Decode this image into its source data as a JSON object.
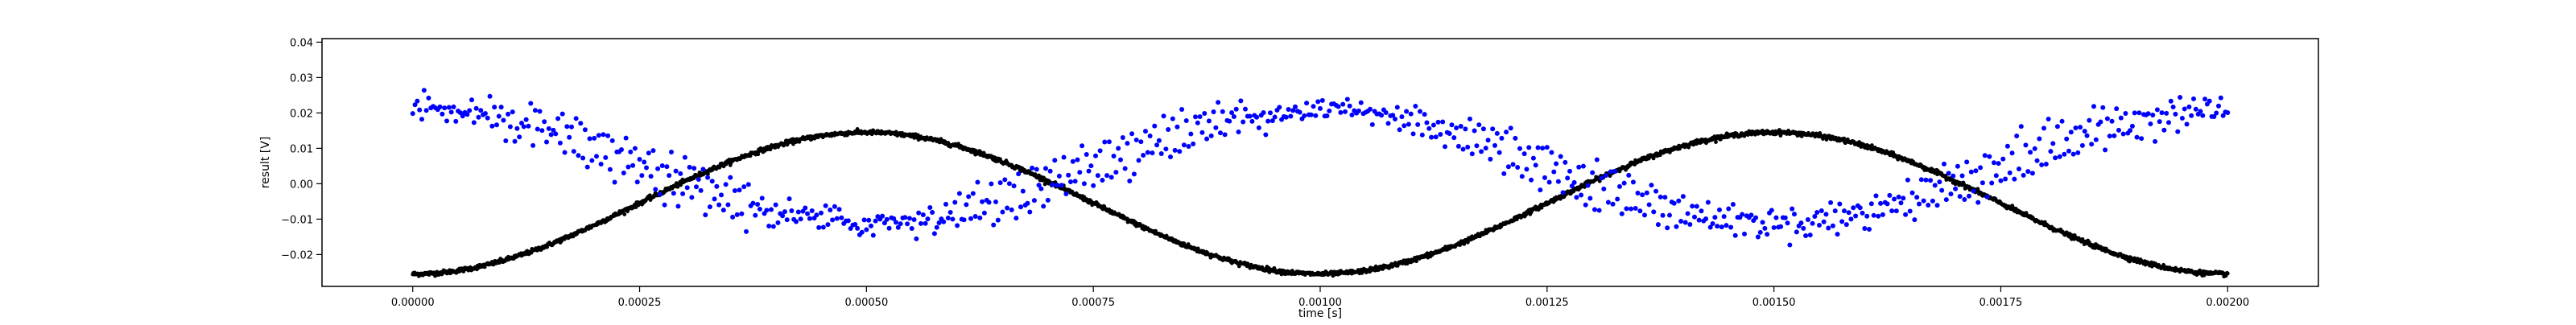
{
  "chart_data": {
    "type": "scatter",
    "title": "",
    "xlabel": "time [s]",
    "ylabel": "result [V]",
    "xlim": [
      -0.0001,
      0.0021
    ],
    "ylim": [
      -0.029,
      0.041
    ],
    "grid": false,
    "x_ticks": [
      0.0,
      0.00025,
      0.0005,
      0.00075,
      0.001,
      0.00125,
      0.0015,
      0.00175,
      0.002
    ],
    "x_tick_labels": [
      "0.00000",
      "0.00025",
      "0.00050",
      "0.00075",
      "0.00100",
      "0.00125",
      "0.00150",
      "0.00175",
      "0.00200"
    ],
    "y_ticks": [
      -0.02,
      -0.01,
      0.0,
      0.01,
      0.02,
      0.03,
      0.04
    ],
    "y_tick_labels": [
      "−0.02",
      "−0.01",
      "0.00",
      "0.01",
      "0.02",
      "0.03",
      "0.04"
    ],
    "series": [
      {
        "color": "#0000ff",
        "marker": "dot",
        "model": "noisy-sine",
        "x_range": [
          0.0,
          0.002
        ],
        "offset": 0.005,
        "amplitude": 0.016,
        "period": 0.001,
        "phase": 3.14159,
        "noise": 0.004
      },
      {
        "color": "#000000",
        "marker": "dot",
        "model": "sine",
        "x_range": [
          0.0,
          0.002
        ],
        "offset": -0.0055,
        "amplitude": 0.02,
        "period": 0.001,
        "phase": 0.0,
        "noise": 0.0003
      }
    ]
  }
}
